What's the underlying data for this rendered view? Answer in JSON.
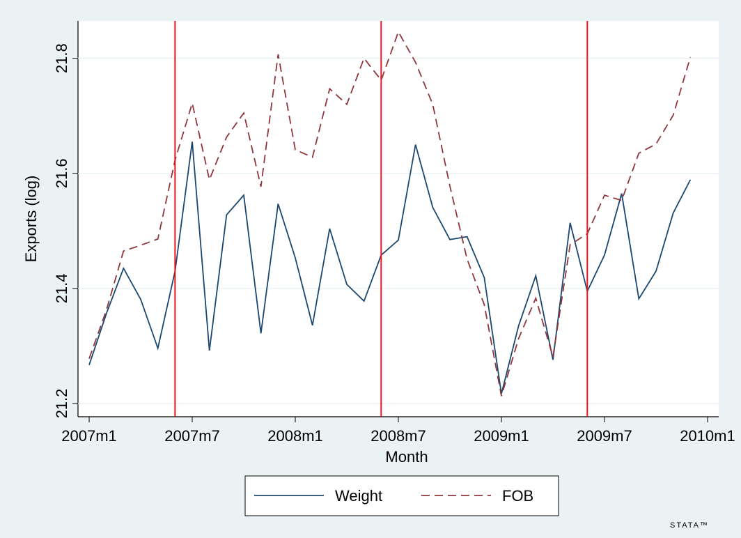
{
  "chart_data": {
    "type": "line",
    "x_label": "Month",
    "y_label": "Exports (log)",
    "x": [
      564,
      565,
      566,
      567,
      568,
      569,
      570,
      571,
      572,
      573,
      574,
      575,
      576,
      577,
      578,
      579,
      580,
      581,
      582,
      583,
      584,
      585,
      586,
      587,
      588,
      589,
      590,
      591,
      592,
      593,
      594,
      595,
      596,
      597,
      598,
      599
    ],
    "series": [
      {
        "name": "Weight",
        "color": "#1a476f",
        "dash": false,
        "values": [
          21.267,
          21.356,
          21.435,
          21.381,
          21.296,
          21.43,
          21.655,
          21.292,
          21.528,
          21.562,
          21.322,
          21.547,
          21.453,
          21.336,
          21.504,
          21.407,
          21.378,
          21.458,
          21.484,
          21.65,
          21.541,
          21.485,
          21.49,
          21.419,
          21.217,
          21.335,
          21.422,
          21.276,
          21.514,
          21.395,
          21.458,
          21.565,
          21.382,
          21.43,
          21.531,
          21.589
        ]
      },
      {
        "name": "FOB",
        "color": "#90353b",
        "dash": true,
        "values": [
          21.278,
          21.362,
          21.465,
          21.475,
          21.486,
          21.623,
          21.722,
          21.589,
          21.663,
          21.705,
          21.577,
          21.807,
          21.641,
          21.628,
          21.747,
          21.72,
          21.8,
          21.762,
          21.846,
          21.793,
          21.72,
          21.578,
          21.451,
          21.372,
          21.213,
          21.313,
          21.383,
          21.281,
          21.476,
          21.495,
          21.562,
          21.553,
          21.635,
          21.651,
          21.701,
          21.802
        ]
      }
    ],
    "vlines": [
      569,
      581,
      593
    ],
    "vline_color": "#e8141c",
    "xlim": [
      563.35,
      600.65
    ],
    "xticks": [
      {
        "value": 564,
        "label": "2007m1"
      },
      {
        "value": 570,
        "label": "2007m7"
      },
      {
        "value": 576,
        "label": "2008m1"
      },
      {
        "value": 582,
        "label": "2008m7"
      },
      {
        "value": 588,
        "label": "2009m1"
      },
      {
        "value": 594,
        "label": "2009m7"
      },
      {
        "value": 600,
        "label": "2010m1"
      }
    ],
    "ylim": [
      21.177,
      21.865
    ],
    "yticks": [
      21.2,
      21.4,
      21.6,
      21.8
    ],
    "grid": true,
    "legend": "bottom",
    "logo": "STATA™"
  }
}
